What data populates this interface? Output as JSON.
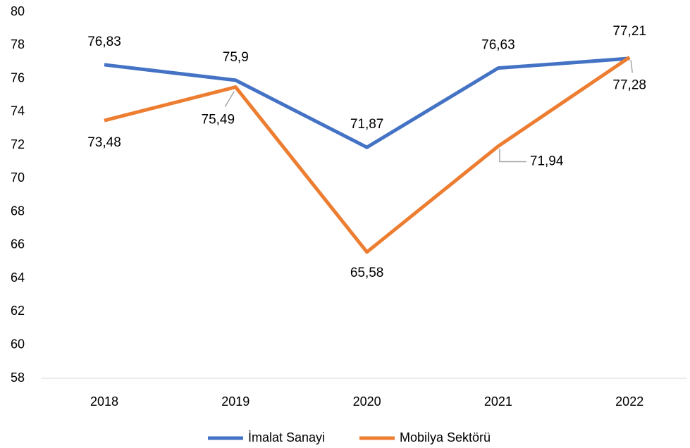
{
  "chart_data": {
    "type": "line",
    "categories": [
      "2018",
      "2019",
      "2020",
      "2021",
      "2022"
    ],
    "series": [
      {
        "name": "İmalat Sanayi",
        "color": "#4472c4",
        "values": [
          76.83,
          75.9,
          71.87,
          76.63,
          77.21
        ],
        "value_labels": [
          "76,83",
          "75,9",
          "71,87",
          "76,63",
          "77,21"
        ]
      },
      {
        "name": "Mobilya Sektörü",
        "color": "#ed7d31",
        "values": [
          73.48,
          75.49,
          65.58,
          71.94,
          77.28
        ],
        "value_labels": [
          "73,48",
          "75,49",
          "65,58",
          "71,94",
          "77,28"
        ]
      }
    ],
    "ylim": [
      58,
      80
    ],
    "yticks": [
      58,
      60,
      62,
      64,
      66,
      68,
      70,
      72,
      74,
      76,
      78,
      80
    ],
    "grid": false,
    "legend": "bottom"
  }
}
